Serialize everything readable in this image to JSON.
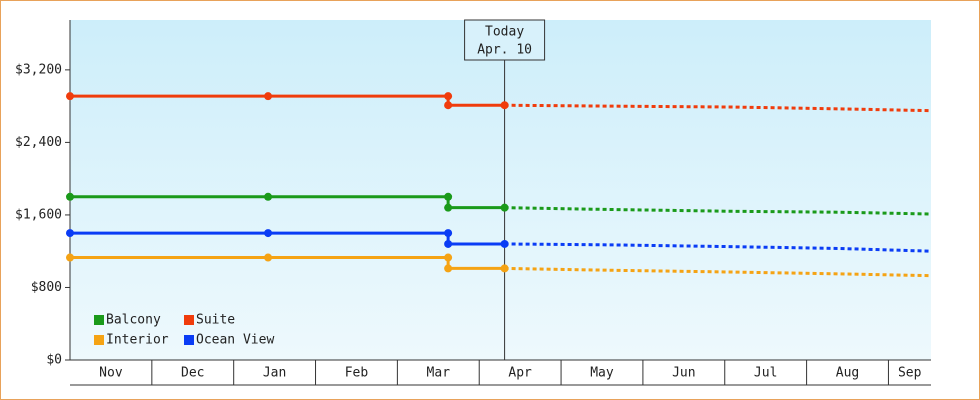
{
  "chart_data": {
    "type": "line",
    "categories": [
      "Nov",
      "Dec",
      "Jan",
      "Feb",
      "Mar",
      "Apr",
      "May",
      "Jun",
      "Jul",
      "Aug",
      "Sep"
    ],
    "xlim": [
      0,
      10.52
    ],
    "ylim": [
      0,
      3750
    ],
    "yticks": [
      {
        "value": 0,
        "label": "$0"
      },
      {
        "value": 800,
        "label": "$800"
      },
      {
        "value": 1600,
        "label": "$1,600"
      },
      {
        "value": 2400,
        "label": "$2,400"
      },
      {
        "value": 3200,
        "label": "$3,200"
      }
    ],
    "today": {
      "x": 5.31,
      "label": "Today",
      "date": "Apr. 10"
    },
    "legend": "lower left",
    "series": [
      {
        "name": "Balcony",
        "color": "#1a9a1a",
        "x": [
          0,
          2.42,
          4.62,
          4.62,
          5.31,
          6.6,
          8.1,
          9.4,
          10.52
        ],
        "values": [
          1800,
          1800,
          1800,
          1680,
          1680,
          1660,
          1640,
          1630,
          1610
        ]
      },
      {
        "name": "Suite",
        "color": "#f03c0c",
        "x": [
          0,
          2.42,
          4.62,
          4.62,
          5.31,
          6.6,
          8.1,
          9.4,
          10.52
        ],
        "values": [
          2910,
          2910,
          2910,
          2810,
          2810,
          2800,
          2790,
          2770,
          2750
        ]
      },
      {
        "name": "Interior",
        "color": "#f5a314",
        "x": [
          0,
          2.42,
          4.62,
          4.62,
          5.31,
          6.6,
          8.1,
          9.4,
          10.52
        ],
        "values": [
          1130,
          1130,
          1130,
          1010,
          1010,
          990,
          970,
          950,
          930
        ]
      },
      {
        "name": "Ocean View",
        "color": "#0a3cf5",
        "x": [
          0,
          2.42,
          4.62,
          4.62,
          5.31,
          6.6,
          8.1,
          9.4,
          10.52
        ],
        "values": [
          1400,
          1400,
          1400,
          1280,
          1280,
          1270,
          1250,
          1230,
          1200
        ]
      }
    ]
  }
}
